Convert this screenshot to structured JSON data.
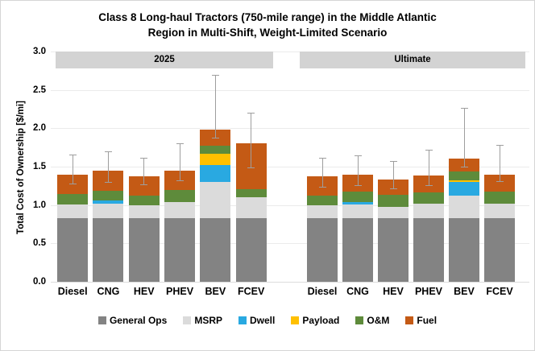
{
  "title": {
    "line1": "Class 8 Long-haul Tractors (750-mile range) in the Middle Atlantic",
    "line2": "Region in Multi-Shift, Weight-Limited Scenario"
  },
  "chart_data": {
    "type": "bar",
    "stacked": true,
    "title": "Class 8 Long-haul Tractors (750-mile range) in the Middle Atlantic Region in Multi-Shift, Weight-Limited Scenario",
    "xlabel": "",
    "ylabel": "Total Cost of Ownership [$/mi]",
    "ylim": [
      0.0,
      3.0
    ],
    "yticks": [
      0.0,
      0.5,
      1.0,
      1.5,
      2.0,
      2.5,
      3.0
    ],
    "grid": true,
    "legend_position": "bottom",
    "categories": [
      "Diesel",
      "CNG",
      "HEV",
      "PHEV",
      "BEV",
      "FCEV"
    ],
    "segments": [
      {
        "name": "General Ops",
        "color": "#838383"
      },
      {
        "name": "MSRP",
        "color": "#dbdbdb"
      },
      {
        "name": "Dwell",
        "color": "#29a9e1"
      },
      {
        "name": "Payload",
        "color": "#ffc000"
      },
      {
        "name": "O&M",
        "color": "#5e8b3b"
      },
      {
        "name": "Fuel",
        "color": "#c45a15"
      }
    ],
    "panels": [
      {
        "label": "2025",
        "bars": [
          {
            "category": "Diesel",
            "values": {
              "General Ops": 0.83,
              "MSRP": 0.18,
              "Dwell": 0,
              "Payload": 0,
              "O&M": 0.13,
              "Fuel": 0.26
            },
            "total": 1.4,
            "error": [
              1.28,
              1.66
            ]
          },
          {
            "category": "CNG",
            "values": {
              "General Ops": 0.83,
              "MSRP": 0.19,
              "Dwell": 0.04,
              "Payload": 0,
              "O&M": 0.13,
              "Fuel": 0.26
            },
            "total": 1.45,
            "error": [
              1.3,
              1.7
            ]
          },
          {
            "category": "HEV",
            "values": {
              "General Ops": 0.83,
              "MSRP": 0.17,
              "Dwell": 0,
              "Payload": 0,
              "O&M": 0.12,
              "Fuel": 0.25
            },
            "total": 1.37,
            "error": [
              1.27,
              1.62
            ]
          },
          {
            "category": "PHEV",
            "values": {
              "General Ops": 0.83,
              "MSRP": 0.21,
              "Dwell": 0,
              "Payload": 0,
              "O&M": 0.16,
              "Fuel": 0.25
            },
            "total": 1.45,
            "error": [
              1.32,
              1.8
            ]
          },
          {
            "category": "BEV",
            "values": {
              "General Ops": 0.83,
              "MSRP": 0.47,
              "Dwell": 0.22,
              "Payload": 0.15,
              "O&M": 0.1,
              "Fuel": 0.21
            },
            "total": 1.98,
            "error": [
              1.88,
              2.7
            ]
          },
          {
            "category": "FCEV",
            "values": {
              "General Ops": 0.83,
              "MSRP": 0.27,
              "Dwell": 0,
              "Payload": 0,
              "O&M": 0.11,
              "Fuel": 0.59
            },
            "total": 1.8,
            "error": [
              1.49,
              2.2
            ]
          }
        ]
      },
      {
        "label": "Ultimate",
        "bars": [
          {
            "category": "Diesel",
            "values": {
              "General Ops": 0.83,
              "MSRP": 0.17,
              "Dwell": 0,
              "Payload": 0,
              "O&M": 0.12,
              "Fuel": 0.25
            },
            "total": 1.37,
            "error": [
              1.24,
              1.62
            ]
          },
          {
            "category": "CNG",
            "values": {
              "General Ops": 0.83,
              "MSRP": 0.18,
              "Dwell": 0.03,
              "Payload": 0,
              "O&M": 0.13,
              "Fuel": 0.22
            },
            "total": 1.39,
            "error": [
              1.26,
              1.65
            ]
          },
          {
            "category": "HEV",
            "values": {
              "General Ops": 0.83,
              "MSRP": 0.15,
              "Dwell": 0,
              "Payload": 0,
              "O&M": 0.15,
              "Fuel": 0.2
            },
            "total": 1.33,
            "error": [
              1.22,
              1.57
            ]
          },
          {
            "category": "PHEV",
            "values": {
              "General Ops": 0.83,
              "MSRP": 0.19,
              "Dwell": 0,
              "Payload": 0,
              "O&M": 0.14,
              "Fuel": 0.22
            },
            "total": 1.38,
            "error": [
              1.26,
              1.72
            ]
          },
          {
            "category": "BEV",
            "values": {
              "General Ops": 0.83,
              "MSRP": 0.29,
              "Dwell": 0.18,
              "Payload": 0.02,
              "O&M": 0.12,
              "Fuel": 0.17
            },
            "total": 1.61,
            "error": [
              1.5,
              2.27
            ]
          },
          {
            "category": "FCEV",
            "values": {
              "General Ops": 0.83,
              "MSRP": 0.19,
              "Dwell": 0,
              "Payload": 0,
              "O&M": 0.16,
              "Fuel": 0.22
            },
            "total": 1.4,
            "error": [
              1.31,
              1.78
            ]
          }
        ]
      }
    ]
  }
}
